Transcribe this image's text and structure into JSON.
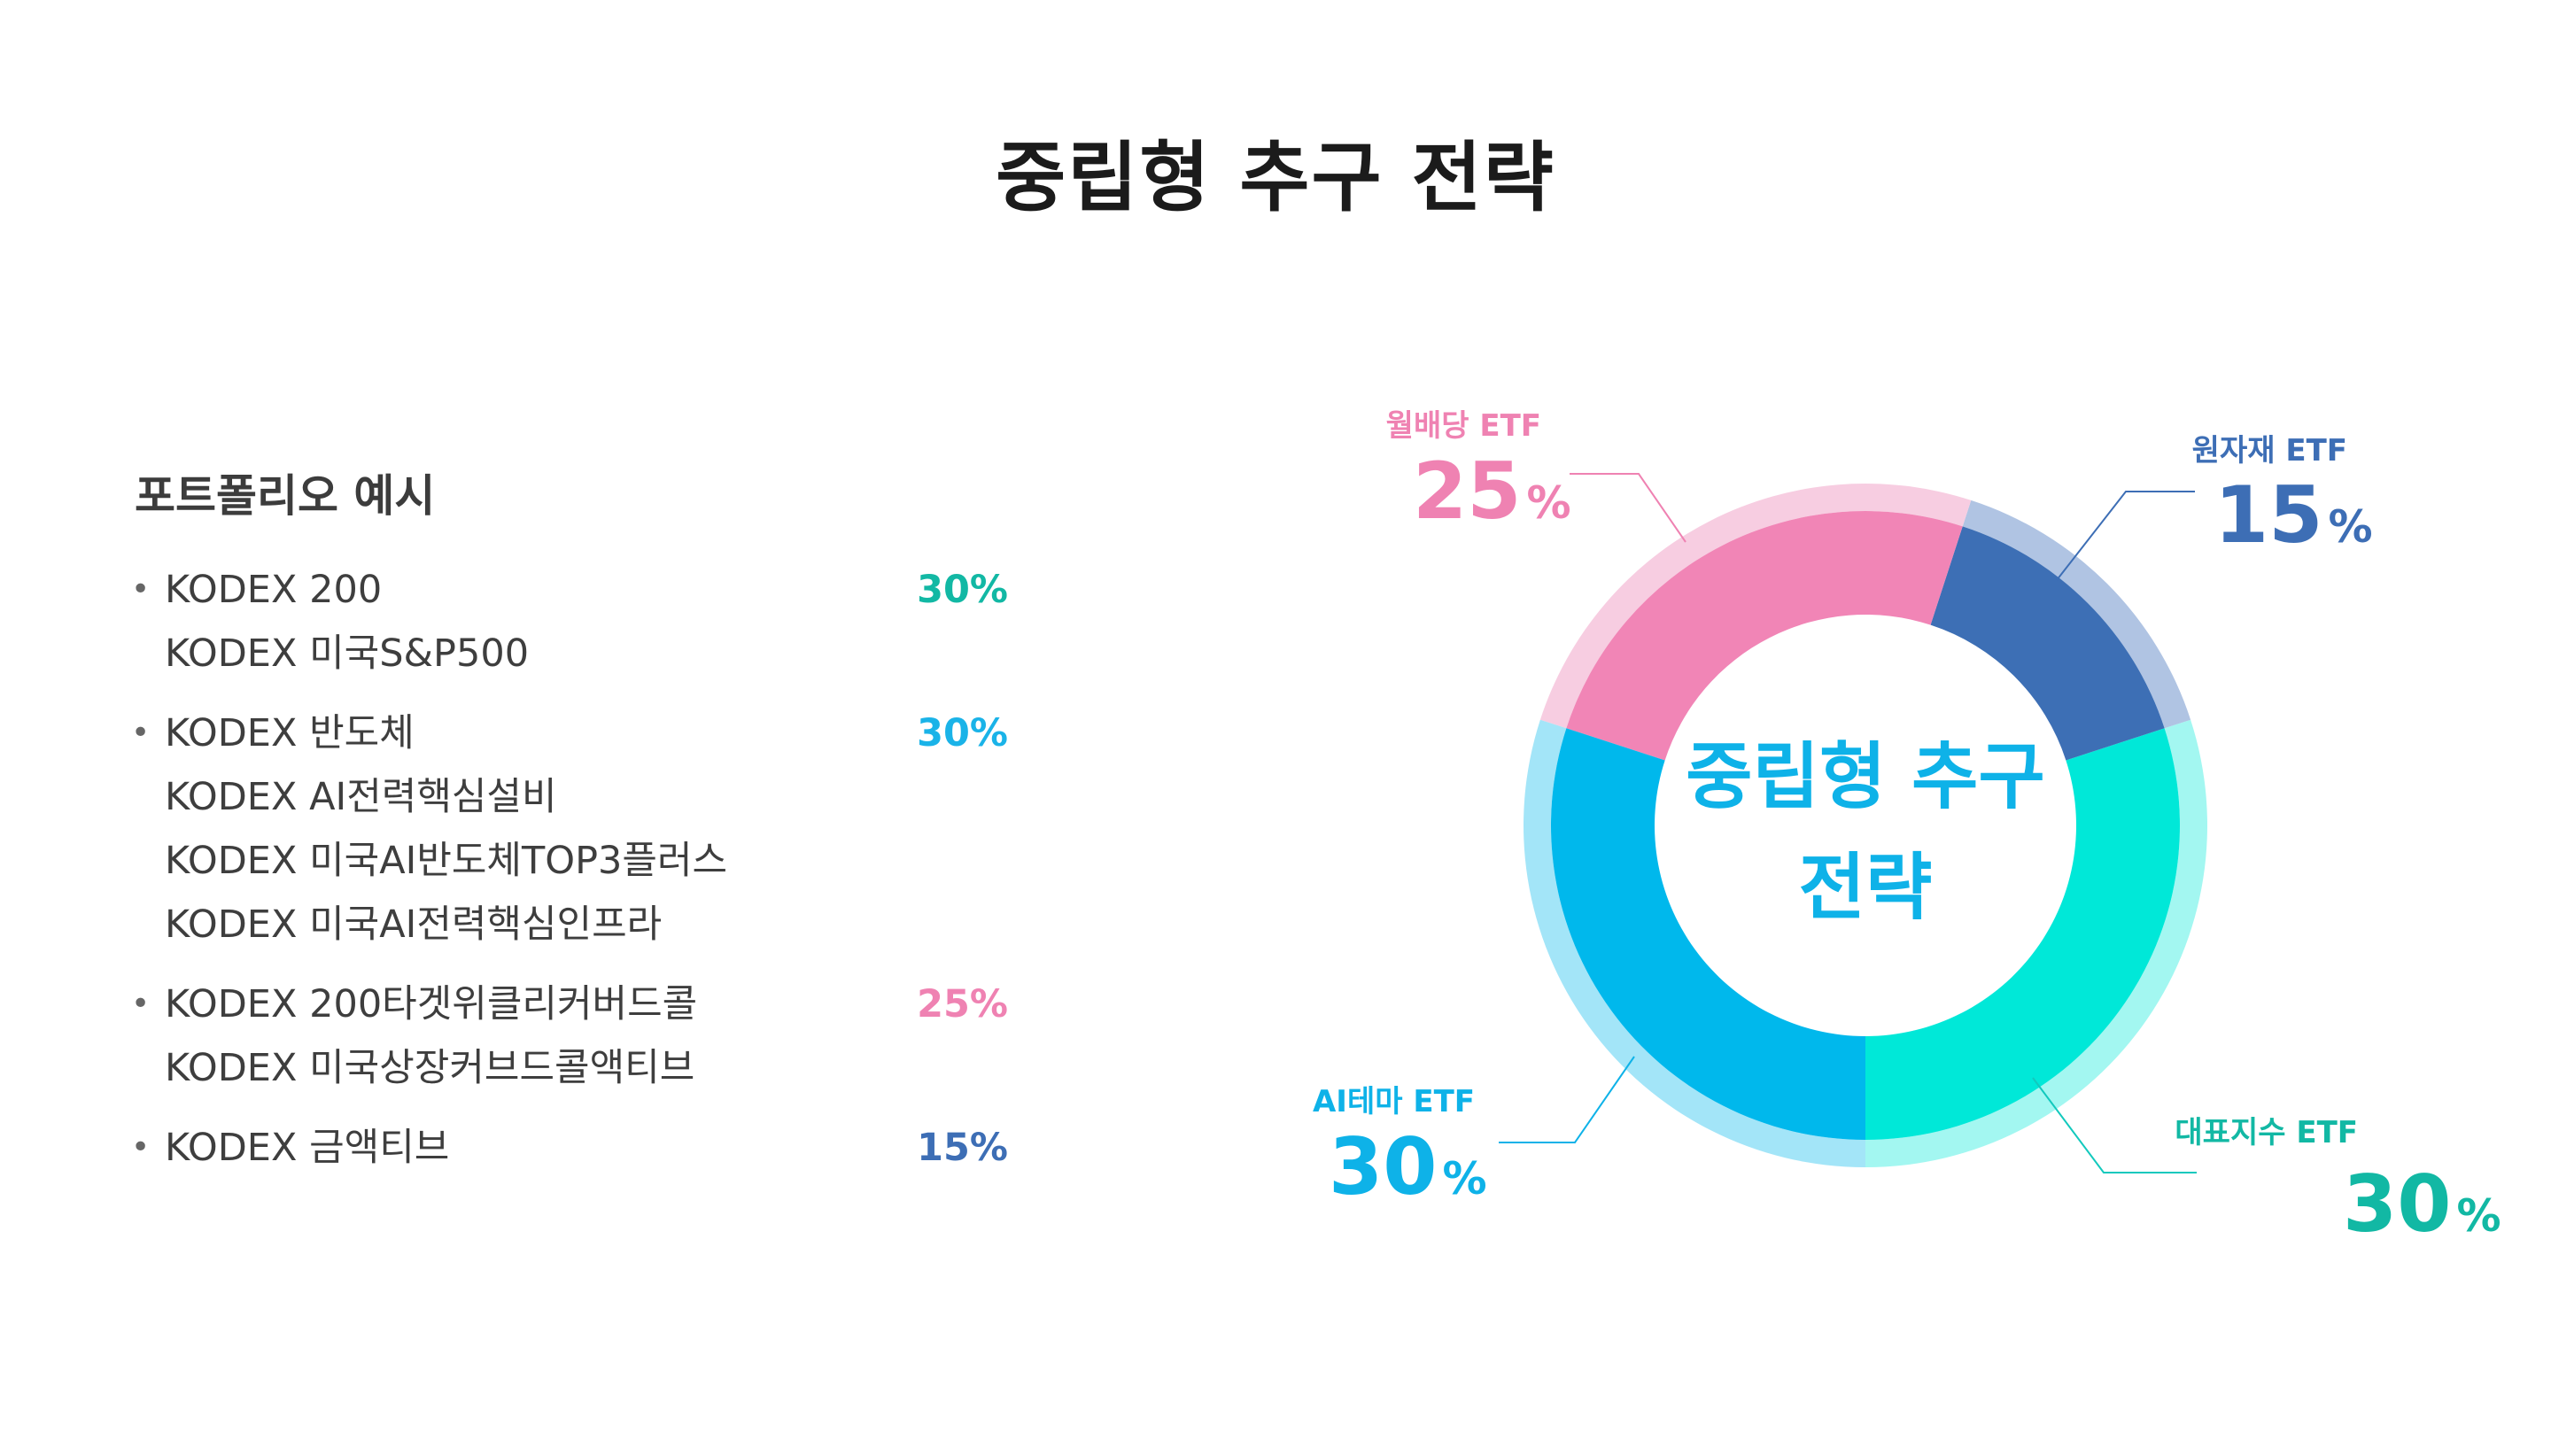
{
  "title": "중립형 추구 전략",
  "portfolio": {
    "heading": "포트폴리오 예시",
    "groups": [
      {
        "bullet": "•",
        "funds": [
          "KODEX 200",
          "KODEX 미국S&P500"
        ],
        "pct": "30%",
        "color": "#12b8a4"
      },
      {
        "bullet": "•",
        "funds": [
          "KODEX 반도체",
          "KODEX AI전력핵심설비",
          "KODEX 미국AI반도체TOP3플러스",
          "KODEX 미국AI전력핵심인프라"
        ],
        "pct": "30%",
        "color": "#1ab3e8"
      },
      {
        "bullet": "•",
        "funds": [
          "KODEX 200타겟위클리커버드콜",
          "KODEX 미국상장커브드콜액티브"
        ],
        "pct": "25%",
        "color": "#ef82b2"
      },
      {
        "bullet": "•",
        "funds": [
          "KODEX 금액티브"
        ],
        "pct": "15%",
        "color": "#3d6eb5"
      }
    ]
  },
  "chart_data": {
    "type": "pie",
    "style": "donut",
    "center_label": [
      "중립형 추구",
      "전략"
    ],
    "center_label_color": "#0eb2e8",
    "start_angle_deg": 180,
    "slices": [
      {
        "label": "대표지수 ETF",
        "value": 30,
        "value_text": "30",
        "unit": "%",
        "color": "#00e8d8",
        "ring_color": "#a3f7f1",
        "label_color": "#12b8a4",
        "leader_color": "#12c9bd"
      },
      {
        "label": "원자재 ETF",
        "value": 15,
        "value_text": "15",
        "unit": "%",
        "color": "#3d6fb5",
        "ring_color": "#b0c4e3",
        "label_color": "#3d6eb5",
        "leader_color": "#3d6eb5"
      },
      {
        "label": "월배당 ETF",
        "value": 25,
        "value_text": "25",
        "unit": "%",
        "color": "#f185b6",
        "ring_color": "#f7cde1",
        "label_color": "#ef82b2",
        "leader_color": "#ef82b2"
      },
      {
        "label": "AI테마 ETF",
        "value": 30,
        "value_text": "30",
        "unit": "%",
        "color": "#00b8ec",
        "ring_color": "#a3e5f8",
        "label_color": "#0eb2e8",
        "leader_color": "#0eb2e8"
      }
    ]
  }
}
